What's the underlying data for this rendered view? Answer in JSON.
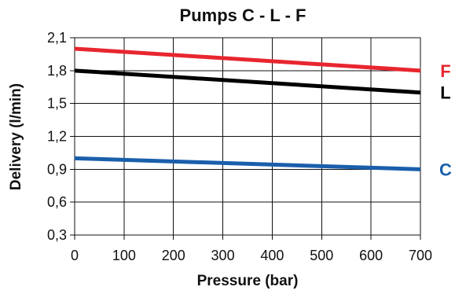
{
  "chart_data": {
    "type": "line",
    "title": "Pumps C - L - F",
    "xlabel": "Pressure (bar)",
    "ylabel": "Delivery (l/min)",
    "xlim": [
      0,
      700
    ],
    "ylim": [
      0.3,
      2.1
    ],
    "x_ticks": [
      0,
      100,
      200,
      300,
      400,
      500,
      600,
      700
    ],
    "x_tick_labels": [
      "0",
      "100",
      "200",
      "300",
      "400",
      "500",
      "600",
      "700"
    ],
    "y_ticks": [
      0.3,
      0.6,
      0.9,
      1.2,
      1.5,
      1.8,
      2.1
    ],
    "y_tick_labels": [
      "0,3",
      "0,6",
      "0,9",
      "1,2",
      "1,5",
      "1,8",
      "2,1"
    ],
    "grid": true,
    "legend_placement": "right",
    "series": [
      {
        "name": "F",
        "color": "#e8262f",
        "x": [
          0,
          700
        ],
        "values": [
          2.0,
          1.8
        ]
      },
      {
        "name": "L",
        "color": "#000000",
        "x": [
          0,
          700
        ],
        "values": [
          1.8,
          1.6
        ]
      },
      {
        "name": "C",
        "color": "#1a5fab",
        "x": [
          0,
          700
        ],
        "values": [
          1.0,
          0.9
        ]
      }
    ]
  }
}
